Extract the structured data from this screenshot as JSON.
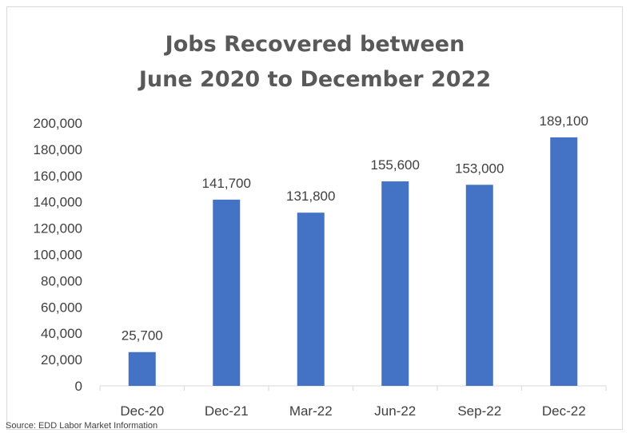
{
  "chart_data": {
    "type": "bar",
    "title_lines": [
      "Jobs Recovered between",
      "June 2020 to December 2022"
    ],
    "categories": [
      "Dec-20",
      "Dec-21",
      "Mar-22",
      "Jun-22",
      "Sep-22",
      "Dec-22"
    ],
    "values": [
      25700,
      141700,
      131800,
      155600,
      153000,
      189100
    ],
    "data_labels": [
      "25,700",
      "141,700",
      "131,800",
      "155,600",
      "153,000",
      "189,100"
    ],
    "y_ticks": [
      "0",
      "20,000",
      "40,000",
      "60,000",
      "80,000",
      "100,000",
      "120,000",
      "140,000",
      "160,000",
      "180,000",
      "200,000"
    ],
    "ylim": [
      0,
      200000
    ],
    "xlabel": "",
    "ylabel": "",
    "grid": false,
    "bar_color": "#4472c4"
  },
  "source": "Source: EDD Labor Market Information"
}
